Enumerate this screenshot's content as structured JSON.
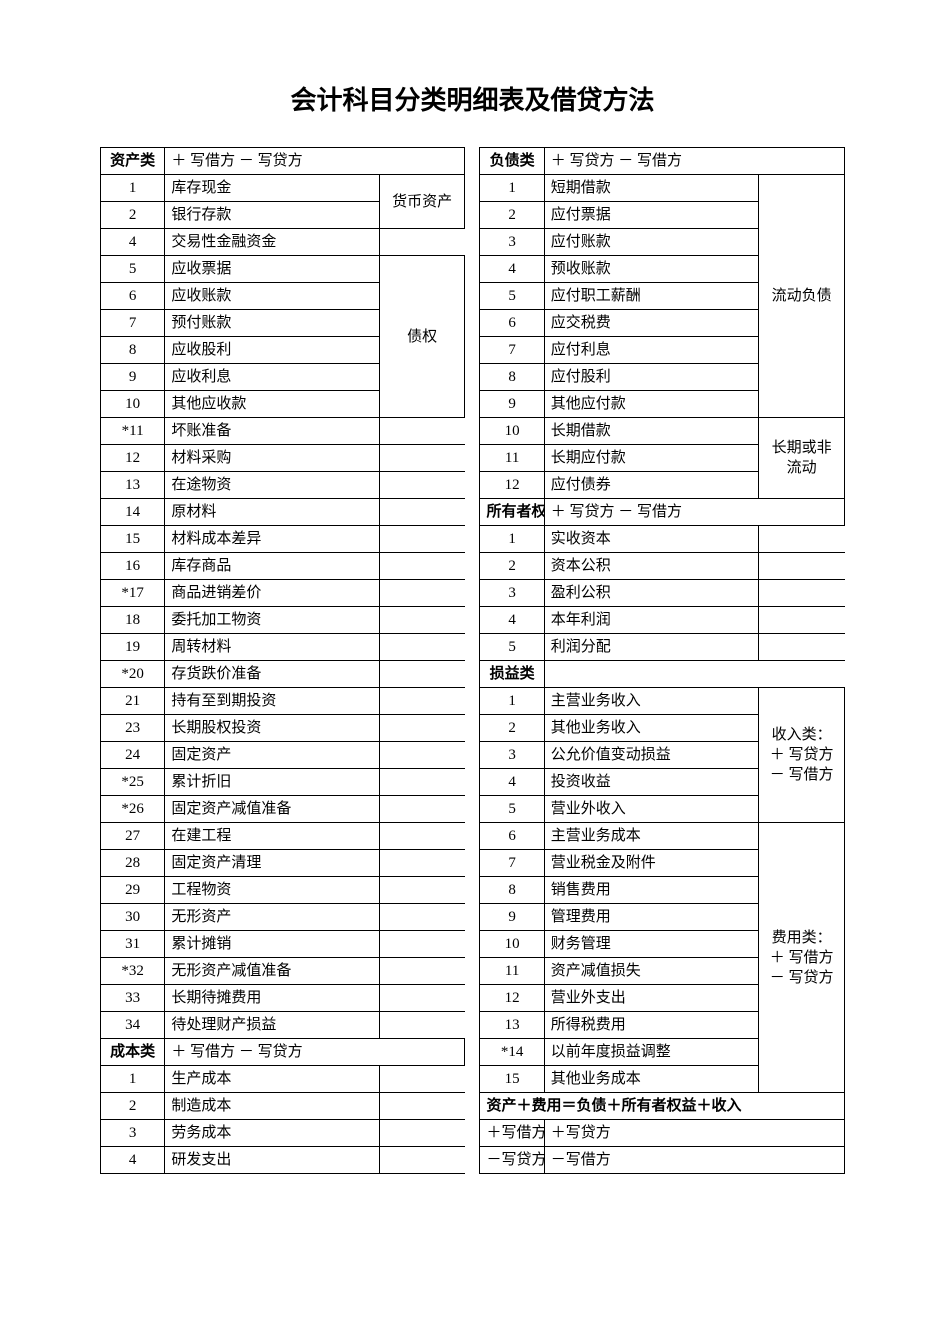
{
  "title": "会计科目分类明细表及借贷方法",
  "columns": {
    "num_width": 60,
    "name_width": 200,
    "cat_width": 80,
    "gap_width": 14
  },
  "left": {
    "asset_header": {
      "label": "资产类",
      "rule": "＋ 写借方 － 写贷方"
    },
    "asset_items": [
      {
        "n": "1",
        "name": "库存现金"
      },
      {
        "n": "2",
        "name": "银行存款"
      },
      {
        "n": "4",
        "name": "交易性金融资金"
      },
      {
        "n": "5",
        "name": "应收票据"
      },
      {
        "n": "6",
        "name": "应收账款"
      },
      {
        "n": "7",
        "name": "预付账款"
      },
      {
        "n": "8",
        "name": "应收股利"
      },
      {
        "n": "9",
        "name": "应收利息"
      },
      {
        "n": "10",
        "name": "其他应收款"
      },
      {
        "n": "*11",
        "name": "坏账准备"
      },
      {
        "n": "12",
        "name": "材料采购"
      },
      {
        "n": "13",
        "name": "在途物资"
      },
      {
        "n": "14",
        "name": "原材料"
      },
      {
        "n": "15",
        "name": "材料成本差异"
      },
      {
        "n": "16",
        "name": "库存商品"
      },
      {
        "n": "*17",
        "name": "商品进销差价"
      },
      {
        "n": "18",
        "name": "委托加工物资"
      },
      {
        "n": "19",
        "name": "周转材料"
      },
      {
        "n": "*20",
        "name": "存货跌价准备"
      },
      {
        "n": "21",
        "name": "持有至到期投资"
      },
      {
        "n": "23",
        "name": "长期股权投资"
      },
      {
        "n": "24",
        "name": "固定资产"
      },
      {
        "n": "*25",
        "name": "累计折旧"
      },
      {
        "n": "*26",
        "name": "固定资产减值准备"
      },
      {
        "n": "27",
        "name": "在建工程"
      },
      {
        "n": "28",
        "name": "固定资产清理"
      },
      {
        "n": "29",
        "name": "工程物资"
      },
      {
        "n": "30",
        "name": "无形资产"
      },
      {
        "n": "31",
        "name": "累计摊销"
      },
      {
        "n": "*32",
        "name": "无形资产减值准备"
      },
      {
        "n": "33",
        "name": "长期待摊费用"
      },
      {
        "n": "34",
        "name": "待处理财产损益"
      }
    ],
    "asset_cats": [
      {
        "label": "货币资产",
        "start": 0,
        "span": 2
      },
      {
        "label": "债权",
        "start": 3,
        "span": 6
      }
    ],
    "cost_header": {
      "label": "成本类",
      "rule": "＋ 写借方 － 写贷方"
    },
    "cost_items": [
      {
        "n": "1",
        "name": "生产成本"
      },
      {
        "n": "2",
        "name": "制造成本"
      },
      {
        "n": "3",
        "name": "劳务成本"
      },
      {
        "n": "4",
        "name": "研发支出"
      }
    ]
  },
  "right": {
    "liab_header": {
      "label": "负债类",
      "rule": "＋ 写贷方 － 写借方"
    },
    "liab_items": [
      {
        "n": "1",
        "name": "短期借款"
      },
      {
        "n": "2",
        "name": "应付票据"
      },
      {
        "n": "3",
        "name": "应付账款"
      },
      {
        "n": "4",
        "name": "预收账款"
      },
      {
        "n": "5",
        "name": "应付职工薪酬"
      },
      {
        "n": "6",
        "name": "应交税费"
      },
      {
        "n": "7",
        "name": "应付利息"
      },
      {
        "n": "8",
        "name": "应付股利"
      },
      {
        "n": "9",
        "name": "其他应付款"
      },
      {
        "n": "10",
        "name": "长期借款"
      },
      {
        "n": "11",
        "name": "长期应付款"
      },
      {
        "n": "12",
        "name": "应付债券"
      }
    ],
    "liab_cats": [
      {
        "label": "流动负债",
        "start": 0,
        "span": 9
      },
      {
        "label": "长期或非流动",
        "start": 9,
        "span": 3,
        "wrap": true
      }
    ],
    "equity_header": {
      "label": "所有者权益",
      "rule": "＋ 写贷方 － 写借方"
    },
    "equity_items": [
      {
        "n": "1",
        "name": "实收资本"
      },
      {
        "n": "2",
        "name": "资本公积"
      },
      {
        "n": "3",
        "name": "盈利公积"
      },
      {
        "n": "4",
        "name": "本年利润"
      },
      {
        "n": "5",
        "name": "利润分配"
      }
    ],
    "pl_header": {
      "label": "损益类",
      "rule": ""
    },
    "pl_items": [
      {
        "n": "1",
        "name": "主营业务收入"
      },
      {
        "n": "2",
        "name": "其他业务收入"
      },
      {
        "n": "3",
        "name": "公允价值变动损益"
      },
      {
        "n": "4",
        "name": "投资收益"
      },
      {
        "n": "5",
        "name": "营业外收入"
      },
      {
        "n": "6",
        "name": "主营业务成本"
      },
      {
        "n": "7",
        "name": "营业税金及附件"
      },
      {
        "n": "8",
        "name": "销售费用"
      },
      {
        "n": "9",
        "name": "管理费用"
      },
      {
        "n": "10",
        "name": "财务管理"
      },
      {
        "n": "11",
        "name": "资产减值损失"
      },
      {
        "n": "12",
        "name": "营业外支出"
      },
      {
        "n": "13",
        "name": "所得税费用"
      },
      {
        "n": "*14",
        "name": "以前年度损益调整"
      },
      {
        "n": "15",
        "name": "其他业务成本"
      }
    ],
    "pl_cats": [
      {
        "label": "收入类：＋ 写贷方 － 写借方",
        "start": 0,
        "span": 5,
        "wrap": true
      },
      {
        "label": "费用类：＋ 写借方 － 写贷方",
        "start": 5,
        "span": 10,
        "wrap": true
      }
    ],
    "equation": "资产＋费用＝负债＋所有者权益＋收入",
    "bottom": [
      {
        "left": "＋写借方",
        "right": "＋写贷方"
      },
      {
        "left": "－写贷方",
        "right": "－写借方"
      }
    ]
  }
}
